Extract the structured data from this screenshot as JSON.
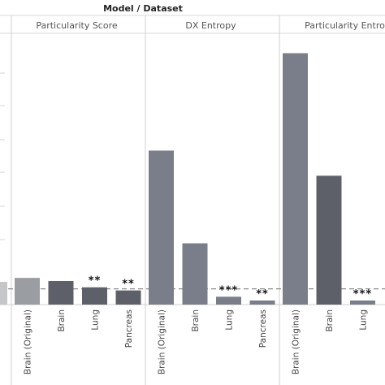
{
  "chart_data": {
    "type": "bar",
    "title": "Model / Dataset",
    "facets": [
      {
        "name": "Particularity Score",
        "categories": [
          "Brain (Original)",
          "Brain",
          "Lung",
          "Pancreas"
        ],
        "values": [
          0.085,
          0.075,
          0.055,
          0.045
        ],
        "significance": [
          "",
          "",
          "**",
          "**"
        ],
        "colors": [
          "#9a9ea3",
          "#5d6068",
          "#5d6068",
          "#5d6068"
        ]
      },
      {
        "name": "DX Entropy",
        "categories": [
          "Brain (Original)",
          "Brain",
          "Lung",
          "Pancreas"
        ],
        "values": [
          0.49,
          0.195,
          0.025,
          0.013
        ],
        "significance": [
          "",
          "",
          "***",
          "**"
        ],
        "colors": [
          "#7a7e8a",
          "#7a7e8a",
          "#7a7e8a",
          "#7a7e8a"
        ]
      },
      {
        "name": "Particularity Entro",
        "categories": [
          "Brain (Original)",
          "Brain",
          "Lung"
        ],
        "values": [
          0.8,
          0.41,
          0.013
        ],
        "significance": [
          "",
          "",
          "***"
        ],
        "colors": [
          "#7a7e8a",
          "#5d6068",
          "#7a7e8a"
        ]
      }
    ],
    "reference_line": 0.05,
    "ylim": [
      0,
      0.84
    ],
    "grid": false
  }
}
